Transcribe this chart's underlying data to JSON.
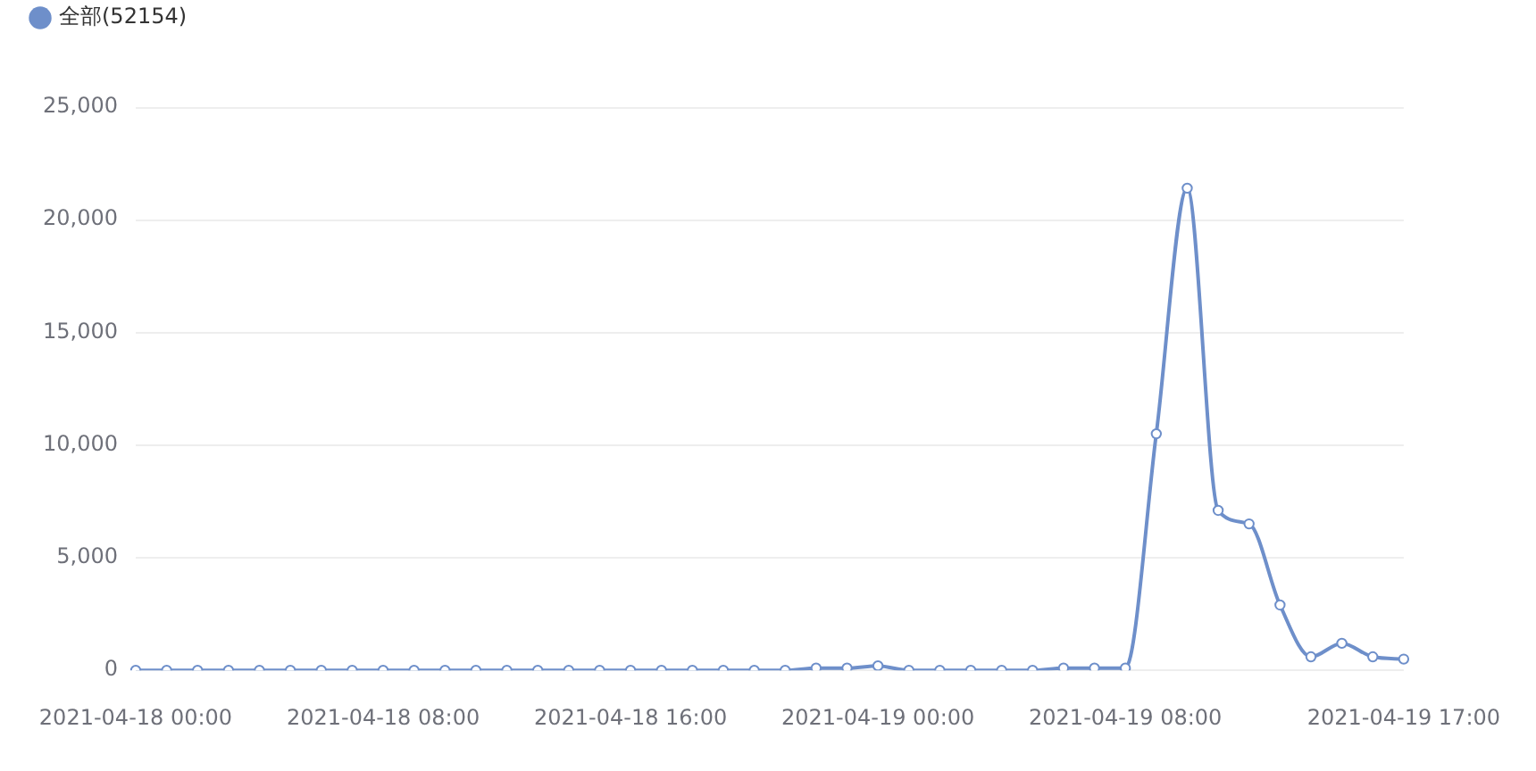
{
  "chart_data": {
    "type": "line",
    "categories": [
      "2021-04-18 00:00",
      null,
      null,
      null,
      null,
      null,
      null,
      null,
      "2021-04-18 08:00",
      null,
      null,
      null,
      null,
      null,
      null,
      null,
      "2021-04-18 16:00",
      null,
      null,
      null,
      null,
      null,
      null,
      null,
      "2021-04-19 00:00",
      null,
      null,
      null,
      null,
      null,
      null,
      null,
      "2021-04-19 08:00",
      null,
      null,
      null,
      null,
      null,
      null,
      null,
      null,
      "2021-04-19 17:00"
    ],
    "series": [
      {
        "name": "全部(52154)",
        "color": "#6e8fca",
        "values": [
          0,
          0,
          0,
          0,
          0,
          0,
          0,
          0,
          0,
          0,
          0,
          0,
          0,
          0,
          0,
          0,
          0,
          0,
          0,
          0,
          0,
          0,
          100,
          100,
          200,
          0,
          0,
          0,
          0,
          0,
          100,
          100,
          100,
          10500,
          21400,
          7100,
          6500,
          2900,
          600,
          1200,
          600,
          500
        ]
      }
    ],
    "ylim": [
      0,
      25000
    ],
    "yticks": [
      0,
      {
        "value": 5000,
        "label": "5,000"
      },
      {
        "value": 10000,
        "label": "10,000"
      },
      {
        "value": 15000,
        "label": "15,000"
      },
      {
        "value": 20000,
        "label": "20,000"
      },
      {
        "value": 25000,
        "label": "25,000"
      }
    ],
    "grid": "y",
    "legend": "top left",
    "marker": "circle"
  }
}
